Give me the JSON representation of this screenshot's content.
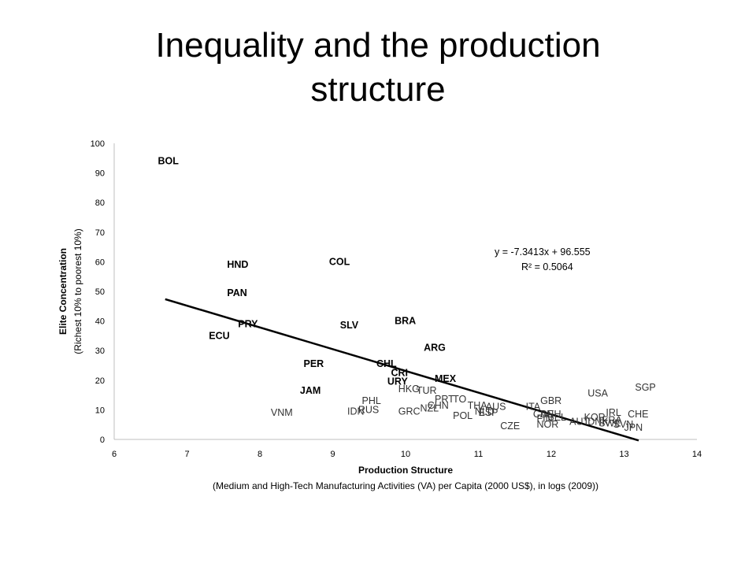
{
  "slide": {
    "title_line1": "Inequality and the production",
    "title_line2": "structure"
  },
  "chart_data": {
    "type": "scatter",
    "xlabel": "Production Structure",
    "xlabel_sub": "(Medium and High-Tech Manufacturing Activities (VA) per Capita (2000 US$), in logs (2009))",
    "ylabel": "Elite Concentration",
    "ylabel_sub": "(Richest 10% to poorest 10%)",
    "xlim": [
      6,
      14
    ],
    "ylim": [
      0,
      100
    ],
    "x_ticks": [
      6,
      7,
      8,
      9,
      10,
      11,
      12,
      13,
      14
    ],
    "y_ticks": [
      0,
      10,
      20,
      30,
      40,
      50,
      60,
      70,
      80,
      90,
      100
    ],
    "grid": false,
    "trendline": {
      "slope": -7.3413,
      "intercept": 96.555,
      "x_from": 6.7,
      "x_to": 13.2,
      "equation": "y = -7.3413x + 96.555",
      "r2": "R² = 0.5064"
    },
    "points": [
      {
        "label": "BOL",
        "x": 6.6,
        "y": 94.0,
        "bold": true
      },
      {
        "label": "HND",
        "x": 7.55,
        "y": 59.0,
        "bold": true
      },
      {
        "label": "COL",
        "x": 8.95,
        "y": 60.0,
        "bold": true
      },
      {
        "label": "PAN",
        "x": 7.55,
        "y": 49.5,
        "bold": true
      },
      {
        "label": "PRY",
        "x": 7.7,
        "y": 39.0,
        "bold": true
      },
      {
        "label": "ECU",
        "x": 7.3,
        "y": 35.0,
        "bold": true
      },
      {
        "label": "SLV",
        "x": 9.1,
        "y": 38.5,
        "bold": true
      },
      {
        "label": "BRA",
        "x": 9.85,
        "y": 40.0,
        "bold": true
      },
      {
        "label": "ARG",
        "x": 10.25,
        "y": 31.0,
        "bold": true
      },
      {
        "label": "PER",
        "x": 8.6,
        "y": 25.5,
        "bold": true
      },
      {
        "label": "CHL",
        "x": 9.6,
        "y": 25.5,
        "bold": true
      },
      {
        "label": "CRI",
        "x": 9.8,
        "y": 22.5,
        "bold": true
      },
      {
        "label": "URY",
        "x": 9.75,
        "y": 19.5,
        "bold": true
      },
      {
        "label": "MEX",
        "x": 10.4,
        "y": 20.5,
        "bold": true
      },
      {
        "label": "JAM",
        "x": 8.55,
        "y": 16.5,
        "bold": true
      },
      {
        "label": "HKG",
        "x": 9.9,
        "y": 17.0,
        "bold": false
      },
      {
        "label": "TUR",
        "x": 10.15,
        "y": 16.5,
        "bold": false
      },
      {
        "label": "PRT",
        "x": 10.4,
        "y": 13.5,
        "bold": false
      },
      {
        "label": "TO",
        "x": 10.65,
        "y": 13.5,
        "bold": false
      },
      {
        "label": "CHN",
        "x": 10.3,
        "y": 11.5,
        "bold": false
      },
      {
        "label": "NZL",
        "x": 10.2,
        "y": 10.5,
        "bold": false
      },
      {
        "label": "THA",
        "x": 10.85,
        "y": 11.5,
        "bold": false
      },
      {
        "label": "AUS",
        "x": 11.1,
        "y": 11.0,
        "bold": false
      },
      {
        "label": "NLD",
        "x": 10.95,
        "y": 9.5,
        "bold": false
      },
      {
        "label": "ESP",
        "x": 11.0,
        "y": 9.0,
        "bold": false
      },
      {
        "label": "POL",
        "x": 10.65,
        "y": 8.0,
        "bold": false
      },
      {
        "label": "PHL",
        "x": 9.4,
        "y": 13.0,
        "bold": false
      },
      {
        "label": "IDN",
        "x": 9.2,
        "y": 9.5,
        "bold": false
      },
      {
        "label": "RUS",
        "x": 9.35,
        "y": 10.0,
        "bold": false
      },
      {
        "label": "GRC",
        "x": 9.9,
        "y": 9.5,
        "bold": false
      },
      {
        "label": "VNM",
        "x": 8.15,
        "y": 9.0,
        "bold": false
      },
      {
        "label": "CZE",
        "x": 11.3,
        "y": 4.5,
        "bold": false
      },
      {
        "label": "NOR",
        "x": 11.8,
        "y": 5.0,
        "bold": false
      },
      {
        "label": "ITA",
        "x": 11.65,
        "y": 11.0,
        "bold": false
      },
      {
        "label": "GBR",
        "x": 11.85,
        "y": 13.0,
        "bold": false
      },
      {
        "label": "CAN",
        "x": 11.75,
        "y": 8.5,
        "bold": false
      },
      {
        "label": "DEU",
        "x": 11.85,
        "y": 8.5,
        "bold": false
      },
      {
        "label": "FIN",
        "x": 11.8,
        "y": 7.0,
        "bold": false
      },
      {
        "label": "BEL",
        "x": 11.95,
        "y": 7.5,
        "bold": false
      },
      {
        "label": "USA",
        "x": 12.5,
        "y": 15.5,
        "bold": false
      },
      {
        "label": "SGP",
        "x": 13.15,
        "y": 17.5,
        "bold": false
      },
      {
        "label": "KOR",
        "x": 12.45,
        "y": 7.5,
        "bold": false
      },
      {
        "label": "IRL",
        "x": 12.75,
        "y": 9.0,
        "bold": false
      },
      {
        "label": "CHE",
        "x": 13.05,
        "y": 8.5,
        "bold": false
      },
      {
        "label": "AUT",
        "x": 12.25,
        "y": 6.0,
        "bold": false
      },
      {
        "label": "DNK",
        "x": 12.5,
        "y": 6.0,
        "bold": false
      },
      {
        "label": "SWE",
        "x": 12.65,
        "y": 5.5,
        "bold": false
      },
      {
        "label": "FRA",
        "x": 12.7,
        "y": 6.5,
        "bold": false
      },
      {
        "label": "SVN",
        "x": 12.85,
        "y": 5.0,
        "bold": false
      },
      {
        "label": "JPN",
        "x": 13.0,
        "y": 4.0,
        "bold": false
      }
    ]
  }
}
